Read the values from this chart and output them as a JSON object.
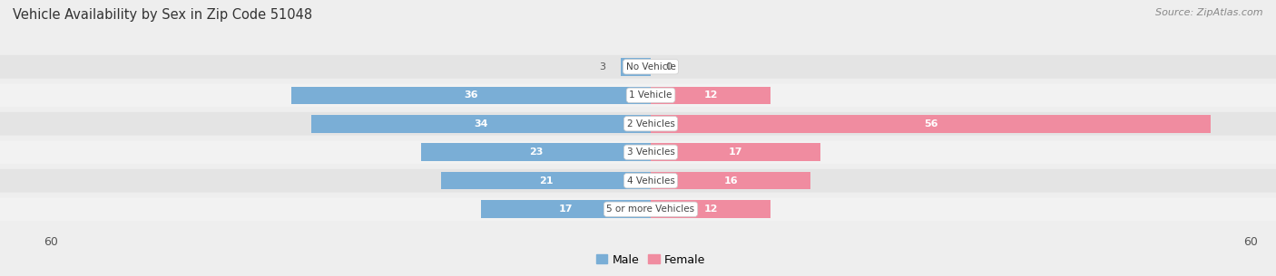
{
  "title": "Vehicle Availability by Sex in Zip Code 51048",
  "source": "Source: ZipAtlas.com",
  "categories": [
    "No Vehicle",
    "1 Vehicle",
    "2 Vehicles",
    "3 Vehicles",
    "4 Vehicles",
    "5 or more Vehicles"
  ],
  "male_values": [
    3,
    36,
    34,
    23,
    21,
    17
  ],
  "female_values": [
    0,
    12,
    56,
    17,
    16,
    12
  ],
  "male_color": "#7aaed6",
  "female_color": "#f08ca0",
  "male_label": "Male",
  "female_label": "Female",
  "axis_limit": 60,
  "background_color": "#eeeeee",
  "row_colors": [
    "#e4e4e4",
    "#f2f2f2"
  ],
  "title_fontsize": 10.5,
  "source_fontsize": 8,
  "bar_fontsize": 8,
  "category_fontsize": 7.5,
  "legend_fontsize": 9,
  "value_label_dark": "#555555",
  "value_label_white": "#ffffff"
}
